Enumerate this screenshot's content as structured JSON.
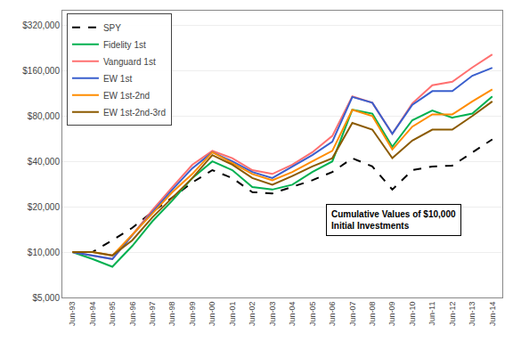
{
  "chart_data": {
    "type": "line",
    "categories": [
      "Jun-93",
      "Jun-94",
      "Jun-95",
      "Jun-96",
      "Jun-97",
      "Jun-98",
      "Jun-99",
      "Jun-00",
      "Jun-01",
      "Jun-02",
      "Jun-03",
      "Jun-04",
      "Jun-05",
      "Jun-06",
      "Jun-07",
      "Jun-08",
      "Jun-09",
      "Jun-10",
      "Jun-11",
      "Jun-12",
      "Jun-13",
      "Jun-14"
    ],
    "series": [
      {
        "name": "SPY",
        "color": "#000000",
        "line_style": "dashed",
        "values": [
          10000,
          10000,
          12000,
          14500,
          18500,
          23000,
          29000,
          35000,
          31000,
          25000,
          24500,
          27000,
          30000,
          34000,
          42000,
          37000,
          26000,
          35000,
          37000,
          37500,
          46000,
          56000
        ]
      },
      {
        "name": "Fidelity 1st",
        "color": "#00b050",
        "line_style": "solid",
        "values": [
          10000,
          9000,
          8000,
          11000,
          16000,
          22000,
          31000,
          40000,
          35000,
          27000,
          26000,
          28000,
          34000,
          40000,
          88000,
          83000,
          50000,
          75000,
          87000,
          78000,
          83000,
          108000
        ]
      },
      {
        "name": "Vanguard 1st",
        "color": "#ff7070",
        "line_style": "solid",
        "values": [
          10000,
          9500,
          9000,
          13000,
          19000,
          27000,
          38000,
          47000,
          42000,
          35000,
          33000,
          38000,
          46000,
          59000,
          108000,
          98000,
          61000,
          97000,
          128000,
          135000,
          168000,
          205000
        ]
      },
      {
        "name": "EW 1st",
        "color": "#3a5fcd",
        "line_style": "solid",
        "values": [
          10000,
          9500,
          9000,
          13000,
          18500,
          26000,
          36000,
          46000,
          40000,
          34000,
          31000,
          37000,
          44000,
          54000,
          107000,
          98000,
          61000,
          95000,
          117000,
          117000,
          148000,
          167000
        ]
      },
      {
        "name": "EW 1st-2nd",
        "color": "#ff8c00",
        "line_style": "solid",
        "values": [
          10000,
          10000,
          9500,
          13000,
          18000,
          25000,
          33000,
          46000,
          39000,
          33000,
          30000,
          34000,
          40000,
          47000,
          88000,
          80000,
          48000,
          68000,
          82000,
          82000,
          100000,
          120000
        ]
      },
      {
        "name": "EW 1st-2nd-3rd",
        "color": "#8B5A00",
        "line_style": "solid",
        "values": [
          10000,
          10000,
          9500,
          12000,
          17000,
          23000,
          31000,
          44000,
          38000,
          31000,
          28000,
          32000,
          37000,
          42000,
          72000,
          65000,
          42000,
          55000,
          65000,
          65000,
          80000,
          100000
        ]
      }
    ],
    "log": "y",
    "ylim": [
      5000,
      400000
    ],
    "yticks": [
      {
        "value": 5000,
        "label": "$5,000"
      },
      {
        "value": 10000,
        "label": "$10,000"
      },
      {
        "value": 20000,
        "label": "$20,000"
      },
      {
        "value": 40000,
        "label": "$40,000"
      },
      {
        "value": 80000,
        "label": "$80,000"
      },
      {
        "value": 160000,
        "label": "$160,000"
      },
      {
        "value": 320000,
        "label": "$320,000"
      }
    ],
    "grid": true,
    "legend": "upper left",
    "annotation": "Cumulative Values of $10,000\nInitial Investments"
  }
}
